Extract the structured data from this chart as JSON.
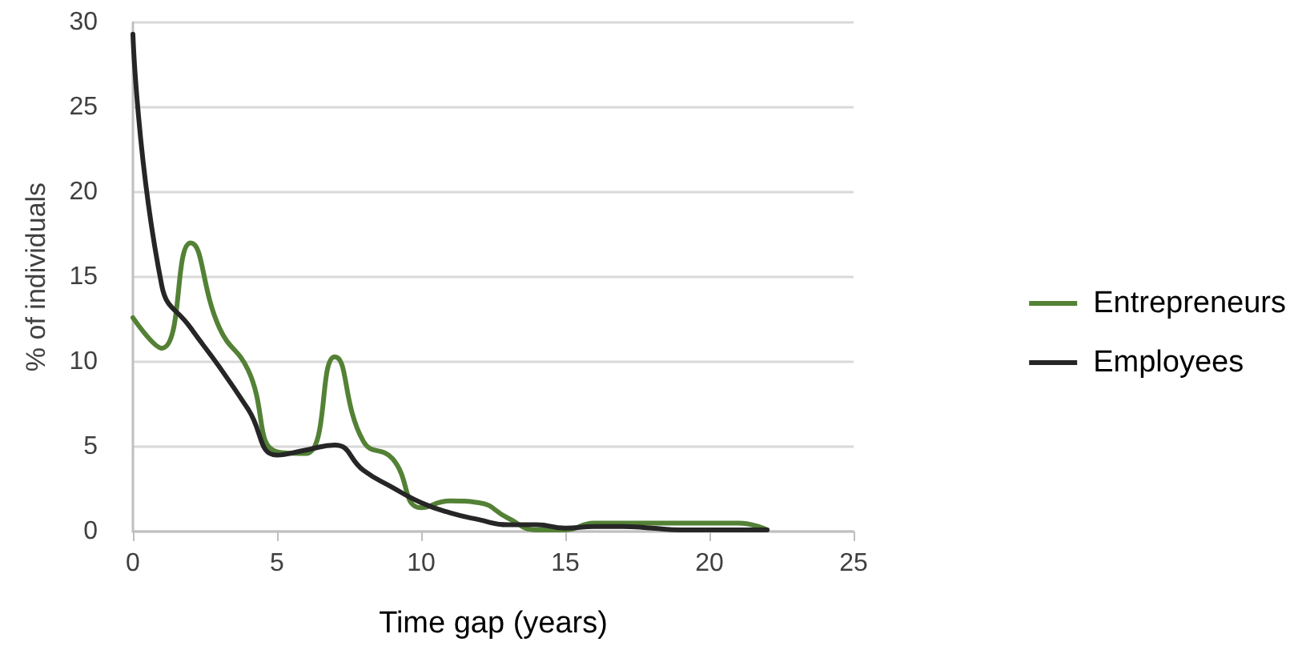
{
  "chart_data": {
    "type": "line",
    "xlabel": "Time gap (years)",
    "ylabel": "% of individuals",
    "x": [
      0,
      1,
      2,
      3,
      4,
      5,
      6,
      7,
      8,
      9,
      10,
      11,
      12,
      13,
      14,
      15,
      16,
      17,
      18,
      19,
      20,
      21,
      22
    ],
    "series": [
      {
        "name": "Entrepreneurs",
        "color": "#538135",
        "values": [
          12.6,
          10.8,
          17,
          12,
          9.5,
          4.7,
          4.6,
          10.3,
          5.3,
          4.3,
          1.4,
          1.8,
          1.7,
          0.8,
          0.1,
          0.1,
          0.5,
          0.5,
          0.5,
          0.5,
          0.5,
          0.5,
          0.1
        ]
      },
      {
        "name": "Employees",
        "color": "#262626",
        "values": [
          29.3,
          14.5,
          12,
          9.7,
          7.2,
          4.5,
          4.8,
          5.1,
          3.6,
          2.6,
          1.7,
          1.1,
          0.7,
          0.4,
          0.4,
          0.2,
          0.3,
          0.3,
          0.2,
          0.1,
          0.1,
          0.1,
          0.1
        ]
      }
    ],
    "xlim": [
      0,
      25
    ],
    "xticks": [
      0,
      5,
      10,
      15,
      20,
      25
    ],
    "ylim": [
      0,
      30
    ],
    "yticks": [
      0,
      5,
      10,
      15,
      20,
      25,
      30
    ],
    "grid": "y",
    "legend": "right",
    "marker": "none",
    "line_style": "solid"
  }
}
